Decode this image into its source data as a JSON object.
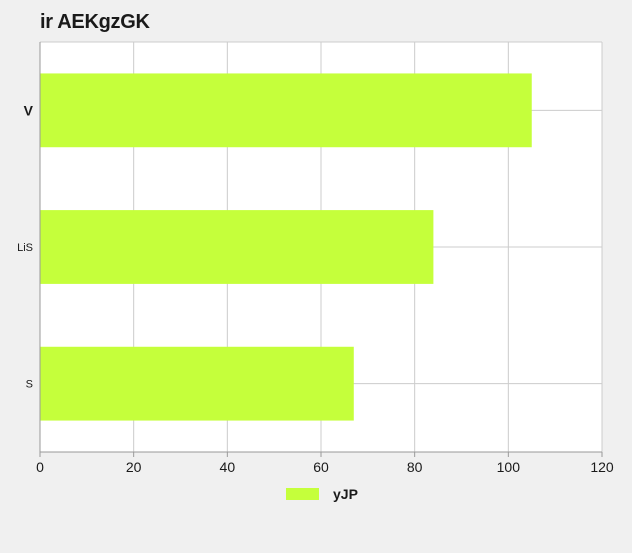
{
  "chart_data": {
    "type": "bar",
    "orientation": "horizontal",
    "title": "ir AEKgzGK",
    "categories": [
      "V",
      "LiS",
      "S"
    ],
    "series": [
      {
        "name": "yJP",
        "values": [
          105,
          84,
          67
        ],
        "color": "#c5ff3b"
      }
    ],
    "xlabel": "",
    "ylabel": "",
    "xlim": [
      0,
      120
    ],
    "xticks": [
      0,
      20,
      40,
      60,
      80,
      100,
      120
    ],
    "grid": true,
    "legend": "bottom-center"
  }
}
